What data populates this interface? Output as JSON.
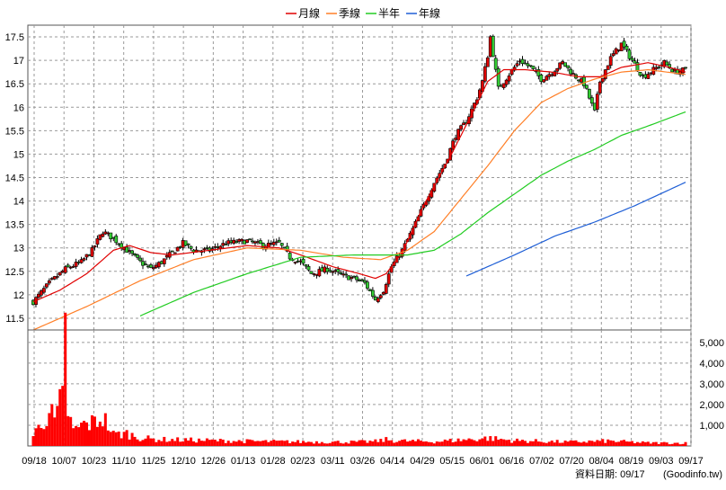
{
  "chart_data": {
    "type": "candlestick",
    "legend": [
      {
        "name": "月線",
        "color": "#e00000"
      },
      {
        "name": "季線",
        "color": "#ff7f27"
      },
      {
        "name": "半年",
        "color": "#22cc22"
      },
      {
        "name": "年線",
        "color": "#1f5fd6"
      }
    ],
    "price_axis": {
      "ylim": [
        11.25,
        17.75
      ],
      "ticks": [
        "11.5",
        "12",
        "12.5",
        "13",
        "13.5",
        "14",
        "14.5",
        "15",
        "15.5",
        "16",
        "16.5",
        "17",
        "17.5"
      ],
      "position": "left"
    },
    "volume_axis": {
      "ylim": [
        0,
        5600
      ],
      "ticks": [
        "1,000",
        "2,000",
        "3,000",
        "4,000",
        "5,000"
      ],
      "position": "right"
    },
    "x_labels": [
      "09/18",
      "10/07",
      "10/23",
      "11/10",
      "11/25",
      "12/10",
      "12/26",
      "01/13",
      "01/28",
      "02/23",
      "03/11",
      "03/26",
      "04/14",
      "04/29",
      "05/15",
      "06/01",
      "06/16",
      "07/02",
      "07/20",
      "08/04",
      "08/19",
      "09/03",
      "09/17"
    ],
    "footer": "資料日期: 09/17",
    "source": "(Goodinfo.tw)",
    "n_days": 245,
    "close_keyframes": [
      [
        0,
        11.85
      ],
      [
        6,
        12.25
      ],
      [
        12,
        12.55
      ],
      [
        18,
        12.7
      ],
      [
        22,
        12.95
      ],
      [
        26,
        13.35
      ],
      [
        30,
        13.2
      ],
      [
        34,
        13.0
      ],
      [
        40,
        12.7
      ],
      [
        44,
        12.55
      ],
      [
        48,
        12.7
      ],
      [
        52,
        12.9
      ],
      [
        56,
        13.1
      ],
      [
        60,
        12.95
      ],
      [
        66,
        12.95
      ],
      [
        72,
        13.1
      ],
      [
        80,
        13.15
      ],
      [
        86,
        13.05
      ],
      [
        92,
        13.1
      ],
      [
        96,
        12.8
      ],
      [
        100,
        12.7
      ],
      [
        104,
        12.45
      ],
      [
        110,
        12.55
      ],
      [
        116,
        12.4
      ],
      [
        120,
        12.35
      ],
      [
        124,
        12.25
      ],
      [
        128,
        11.9
      ],
      [
        131,
        12.1
      ],
      [
        134,
        12.6
      ],
      [
        138,
        12.95
      ],
      [
        142,
        13.4
      ],
      [
        146,
        13.9
      ],
      [
        150,
        14.4
      ],
      [
        154,
        14.8
      ],
      [
        158,
        15.4
      ],
      [
        162,
        15.7
      ],
      [
        166,
        16.2
      ],
      [
        168,
        16.55
      ],
      [
        170,
        17.1
      ],
      [
        171,
        17.5
      ],
      [
        174,
        16.4
      ],
      [
        178,
        16.7
      ],
      [
        182,
        17.0
      ],
      [
        186,
        16.85
      ],
      [
        190,
        16.6
      ],
      [
        194,
        16.75
      ],
      [
        198,
        16.95
      ],
      [
        202,
        16.7
      ],
      [
        206,
        16.5
      ],
      [
        210,
        15.9
      ],
      [
        212,
        16.55
      ],
      [
        216,
        17.05
      ],
      [
        220,
        17.35
      ],
      [
        224,
        17.0
      ],
      [
        228,
        16.65
      ],
      [
        232,
        16.8
      ],
      [
        236,
        16.95
      ],
      [
        240,
        16.75
      ],
      [
        244,
        16.8
      ]
    ],
    "volume_keyframes": [
      [
        0,
        500
      ],
      [
        4,
        1300
      ],
      [
        6,
        1700
      ],
      [
        8,
        1200
      ],
      [
        9,
        1500
      ],
      [
        10,
        2000
      ],
      [
        11,
        2200
      ],
      [
        12,
        5300
      ],
      [
        13,
        1700
      ],
      [
        15,
        700
      ],
      [
        18,
        1000
      ],
      [
        22,
        1100
      ],
      [
        26,
        1400
      ],
      [
        28,
        1000
      ],
      [
        30,
        550
      ],
      [
        35,
        600
      ],
      [
        40,
        400
      ],
      [
        45,
        320
      ],
      [
        60,
        280
      ],
      [
        80,
        230
      ],
      [
        100,
        200
      ],
      [
        120,
        190
      ],
      [
        128,
        220
      ],
      [
        132,
        300
      ],
      [
        136,
        250
      ],
      [
        150,
        210
      ],
      [
        165,
        330
      ],
      [
        170,
        380
      ],
      [
        180,
        260
      ],
      [
        200,
        190
      ],
      [
        215,
        240
      ],
      [
        230,
        150
      ],
      [
        244,
        140
      ]
    ],
    "ma": {
      "月線": [
        [
          0,
          11.85
        ],
        [
          10,
          12.1
        ],
        [
          20,
          12.45
        ],
        [
          30,
          12.95
        ],
        [
          36,
          13.05
        ],
        [
          44,
          12.9
        ],
        [
          52,
          12.85
        ],
        [
          66,
          12.95
        ],
        [
          80,
          13.05
        ],
        [
          92,
          13.0
        ],
        [
          100,
          12.85
        ],
        [
          112,
          12.6
        ],
        [
          122,
          12.45
        ],
        [
          128,
          12.35
        ],
        [
          132,
          12.45
        ],
        [
          138,
          12.9
        ],
        [
          146,
          13.9
        ],
        [
          156,
          14.95
        ],
        [
          164,
          15.85
        ],
        [
          170,
          16.55
        ],
        [
          176,
          16.8
        ],
        [
          184,
          16.8
        ],
        [
          194,
          16.75
        ],
        [
          204,
          16.65
        ],
        [
          212,
          16.65
        ],
        [
          220,
          16.85
        ],
        [
          230,
          16.95
        ],
        [
          238,
          16.85
        ],
        [
          244,
          16.75
        ]
      ],
      "季線": [
        [
          0,
          11.25
        ],
        [
          20,
          11.75
        ],
        [
          40,
          12.3
        ],
        [
          60,
          12.75
        ],
        [
          80,
          13.0
        ],
        [
          100,
          12.95
        ],
        [
          116,
          12.8
        ],
        [
          130,
          12.75
        ],
        [
          140,
          12.95
        ],
        [
          150,
          13.35
        ],
        [
          160,
          14.05
        ],
        [
          170,
          14.75
        ],
        [
          180,
          15.5
        ],
        [
          190,
          16.1
        ],
        [
          200,
          16.4
        ],
        [
          210,
          16.6
        ],
        [
          220,
          16.75
        ],
        [
          230,
          16.8
        ],
        [
          244,
          16.7
        ]
      ],
      "半年": [
        [
          40,
          11.55
        ],
        [
          60,
          12.05
        ],
        [
          80,
          12.45
        ],
        [
          100,
          12.8
        ],
        [
          120,
          12.85
        ],
        [
          140,
          12.85
        ],
        [
          150,
          12.95
        ],
        [
          160,
          13.3
        ],
        [
          170,
          13.75
        ],
        [
          180,
          14.15
        ],
        [
          190,
          14.55
        ],
        [
          200,
          14.85
        ],
        [
          210,
          15.1
        ],
        [
          220,
          15.4
        ],
        [
          230,
          15.6
        ],
        [
          244,
          15.9
        ]
      ],
      "年線": [
        [
          162,
          12.4
        ],
        [
          180,
          12.85
        ],
        [
          195,
          13.25
        ],
        [
          210,
          13.55
        ],
        [
          225,
          13.9
        ],
        [
          244,
          14.4
        ]
      ]
    }
  }
}
